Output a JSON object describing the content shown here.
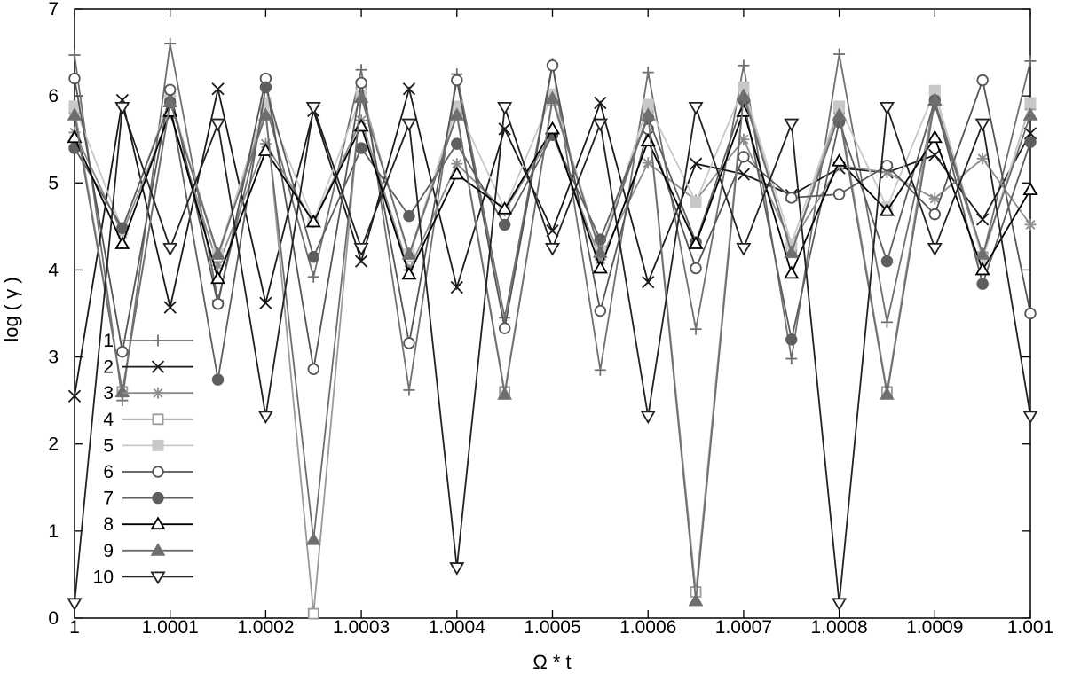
{
  "chart_data": {
    "type": "line",
    "xlabel": "Ω * t",
    "ylabel": "log ( γ )",
    "xlim": [
      1,
      1.001
    ],
    "ylim": [
      0,
      7
    ],
    "xticks": [
      1,
      1.0001,
      1.0002,
      1.0003,
      1.0004,
      1.0005,
      1.0006,
      1.0007,
      1.0008,
      1.0009,
      1.001
    ],
    "xtick_labels": [
      "1",
      "1.0001",
      "1.0002",
      "1.0003",
      "1.0004",
      "1.0005",
      "1.0006",
      "1.0007",
      "1.0008",
      "1.0009",
      "1.001"
    ],
    "yticks": [
      0,
      1,
      2,
      3,
      4,
      5,
      6,
      7
    ],
    "ytick_labels": [
      "0",
      "1",
      "2",
      "3",
      "4",
      "5",
      "6",
      "7"
    ],
    "grid": false,
    "legend_position": "bottom-left",
    "x": [
      1,
      1.00005,
      1.0001,
      1.00015,
      1.0002,
      1.00025,
      1.0003,
      1.00035,
      1.0004,
      1.00045,
      1.0005,
      1.00055,
      1.0006,
      1.00065,
      1.0007,
      1.00075,
      1.0008,
      1.00085,
      1.0009,
      1.00095,
      1.001
    ],
    "series": [
      {
        "name": "1",
        "color": "#707070",
        "marker": "plus",
        "values": [
          6.47,
          2.5,
          6.6,
          3.65,
          5.9,
          3.92,
          6.3,
          2.62,
          6.25,
          3.45,
          6.37,
          2.85,
          6.27,
          3.32,
          6.35,
          2.98,
          6.48,
          3.4,
          5.9,
          4.15,
          6.4
        ]
      },
      {
        "name": "2",
        "color": "#1a1a1a",
        "marker": "x",
        "values": [
          2.55,
          5.95,
          3.57,
          6.08,
          3.62,
          5.83,
          4.1,
          6.08,
          3.8,
          5.62,
          4.45,
          5.92,
          3.86,
          5.22,
          5.1,
          4.86,
          5.17,
          5.12,
          5.32,
          4.58,
          5.57
        ]
      },
      {
        "name": "3",
        "color": "#8c8c8c",
        "marker": "asterisk",
        "values": [
          5.58,
          4.42,
          5.8,
          4.05,
          5.45,
          4.55,
          5.72,
          4.0,
          5.22,
          4.68,
          5.57,
          4.12,
          5.23,
          4.8,
          5.5,
          4.3,
          5.2,
          5.12,
          4.82,
          5.28,
          4.52
        ]
      },
      {
        "name": "4",
        "color": "#9a9a9a",
        "marker": "square-open",
        "values": [
          5.85,
          2.6,
          5.95,
          4.15,
          5.85,
          0.05,
          6.05,
          4.15,
          5.8,
          2.6,
          5.95,
          4.2,
          5.8,
          0.3,
          6.05,
          4.2,
          5.85,
          2.6,
          6.05,
          4.15,
          5.9
        ]
      },
      {
        "name": "5",
        "color": "#c8c8c8",
        "marker": "square-filled",
        "values": [
          5.88,
          4.46,
          5.98,
          4.18,
          5.92,
          4.56,
          6.0,
          4.18,
          5.88,
          4.7,
          6.02,
          4.22,
          5.9,
          4.78,
          6.1,
          4.3,
          5.88,
          4.72,
          6.06,
          4.12,
          5.92
        ]
      },
      {
        "name": "6",
        "color": "#555555",
        "marker": "circle-open",
        "values": [
          6.2,
          3.06,
          6.07,
          3.61,
          6.2,
          2.86,
          6.15,
          3.16,
          6.18,
          3.33,
          6.35,
          3.53,
          5.62,
          4.02,
          5.3,
          4.83,
          4.87,
          5.2,
          4.64,
          6.18,
          3.5
        ]
      },
      {
        "name": "7",
        "color": "#5e5e5e",
        "marker": "circle-filled",
        "values": [
          5.4,
          4.48,
          5.93,
          2.74,
          6.1,
          4.15,
          5.4,
          4.62,
          5.45,
          4.52,
          5.55,
          4.35,
          5.75,
          4.32,
          5.95,
          3.2,
          5.7,
          4.1,
          5.95,
          3.84,
          5.47
        ]
      },
      {
        "name": "8",
        "color": "#000000",
        "marker": "triangle-up-open",
        "values": [
          5.52,
          4.3,
          5.82,
          3.9,
          5.37,
          4.55,
          5.65,
          3.95,
          5.1,
          4.7,
          5.62,
          4.02,
          5.48,
          4.3,
          5.82,
          3.96,
          5.25,
          4.68,
          5.52,
          4.0,
          4.92
        ]
      },
      {
        "name": "9",
        "color": "#6e6e6e",
        "marker": "triangle-up-filled",
        "values": [
          5.78,
          2.6,
          5.93,
          4.18,
          5.78,
          0.9,
          5.98,
          4.18,
          5.78,
          2.57,
          5.97,
          4.2,
          5.78,
          0.2,
          6.0,
          4.2,
          5.78,
          2.57,
          5.95,
          4.18,
          5.78
        ]
      },
      {
        "name": "10",
        "color": "#222222",
        "marker": "triangle-down-open",
        "values": [
          0.17,
          5.87,
          4.25,
          5.68,
          2.32,
          5.87,
          4.25,
          5.68,
          0.58,
          5.87,
          4.25,
          5.68,
          2.32,
          5.87,
          4.25,
          5.68,
          0.17,
          5.87,
          4.25,
          5.68,
          2.32
        ]
      }
    ]
  }
}
